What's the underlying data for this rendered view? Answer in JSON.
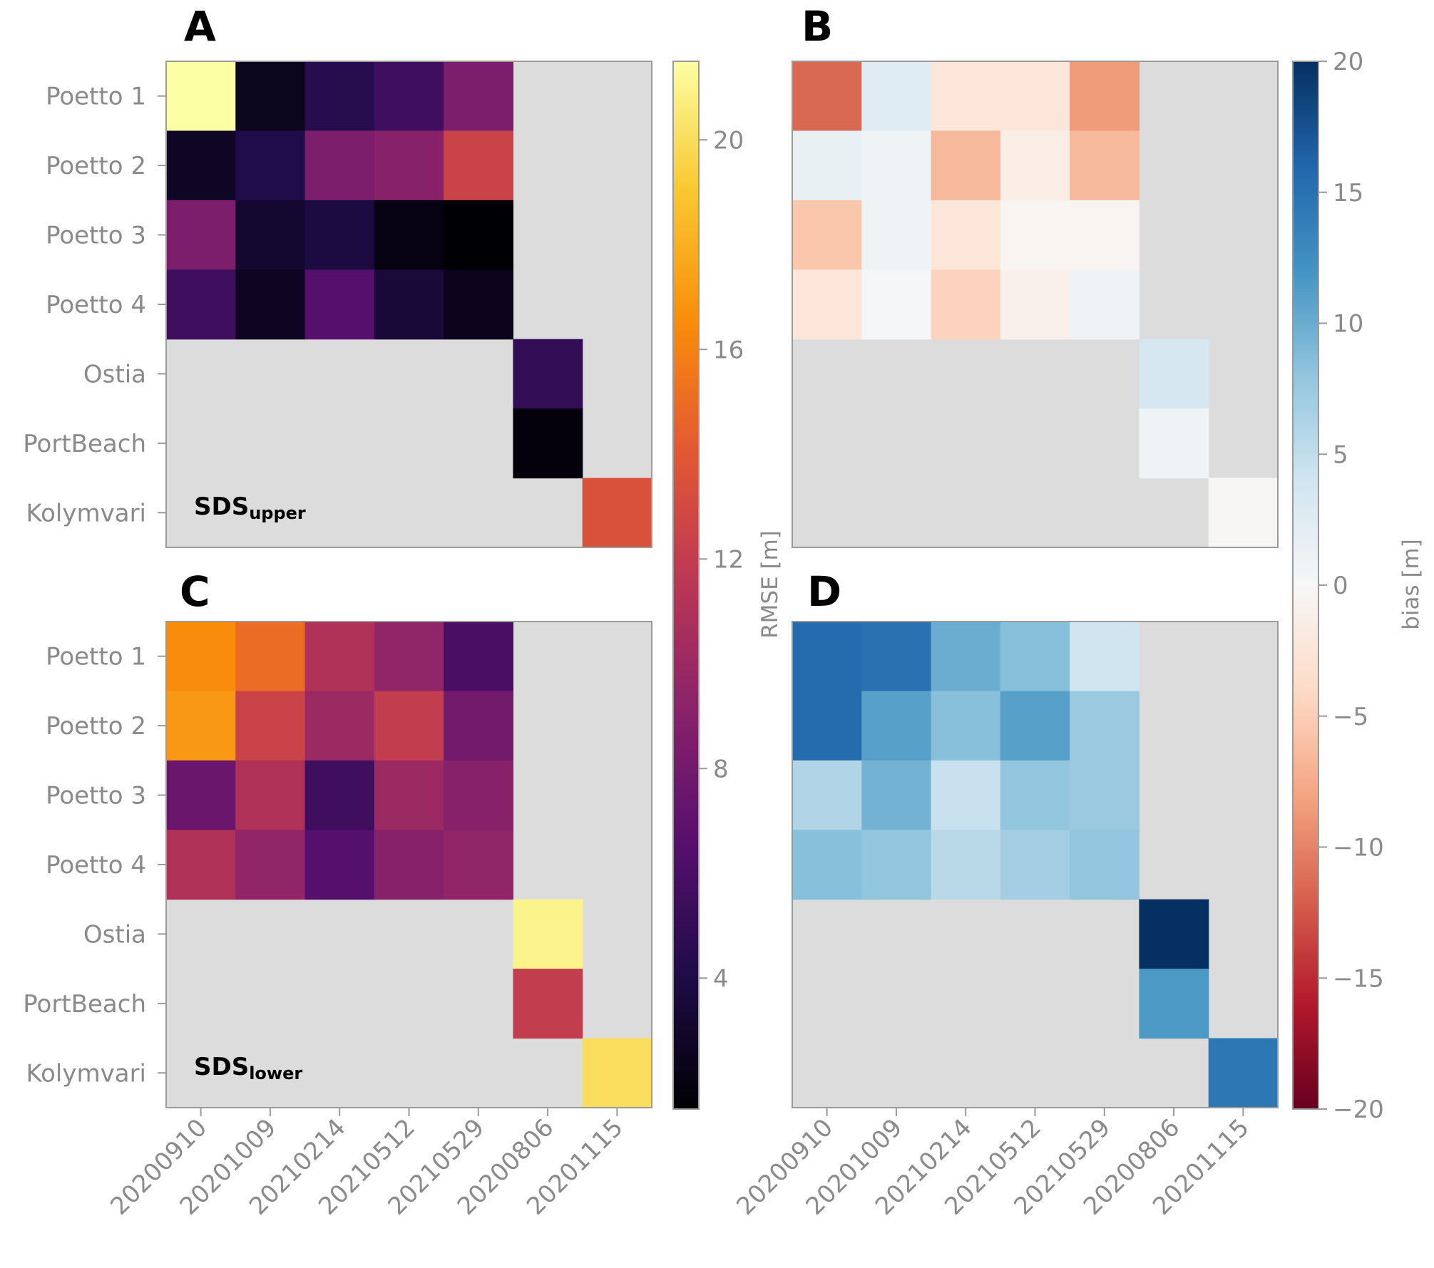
{
  "chart_data": [
    {
      "type": "heatmap",
      "panel": "A",
      "rows": [
        "Poetto 1",
        "Poetto 2",
        "Poetto 3",
        "Poetto 4",
        "Ostia",
        "PortBeach",
        "Kolymvari"
      ],
      "columns": [
        "20200910",
        "20201009",
        "20210214",
        "20210512",
        "20210529",
        "20200806",
        "20201115"
      ],
      "values": [
        [
          21.5,
          2.5,
          4.5,
          5.5,
          8.5,
          null,
          null
        ],
        [
          2.8,
          4.2,
          8.5,
          9.0,
          12.5,
          null,
          null
        ],
        [
          8.5,
          3.2,
          3.8,
          2.0,
          1.5,
          null,
          null
        ],
        [
          5.5,
          2.6,
          6.5,
          3.5,
          2.4,
          null,
          null
        ],
        [
          null,
          null,
          null,
          null,
          null,
          5.0,
          null
        ],
        [
          null,
          null,
          null,
          null,
          null,
          1.8,
          null
        ],
        [
          null,
          null,
          null,
          null,
          null,
          null,
          13.5
        ]
      ],
      "annotation": {
        "main": "SDS",
        "sub": "upper"
      },
      "colormap": "inferno",
      "vlim": [
        1.5,
        21.5
      ]
    },
    {
      "type": "heatmap",
      "panel": "B",
      "rows": [
        "Poetto 1",
        "Poetto 2",
        "Poetto 3",
        "Poetto 4",
        "Ostia",
        "PortBeach",
        "Kolymvari"
      ],
      "columns": [
        "20200910",
        "20201009",
        "20210214",
        "20210512",
        "20210529",
        "20200806",
        "20201115"
      ],
      "values": [
        [
          -11.5,
          2.5,
          -2.5,
          -2.5,
          -8.5,
          null,
          null
        ],
        [
          1.5,
          1.0,
          -6.5,
          -1.5,
          -6.5,
          null,
          null
        ],
        [
          -5.5,
          1.0,
          -2.5,
          -0.5,
          -0.5,
          null,
          null
        ],
        [
          -2.5,
          0.2,
          -4.5,
          -1.0,
          0.8,
          null,
          null
        ],
        [
          null,
          null,
          null,
          null,
          null,
          3.5,
          null
        ],
        [
          null,
          null,
          null,
          null,
          null,
          1.0,
          null
        ],
        [
          null,
          null,
          null,
          null,
          null,
          null,
          -0.2
        ]
      ],
      "colormap": "RdBu",
      "vlim": [
        -20,
        20
      ]
    },
    {
      "type": "heatmap",
      "panel": "C",
      "rows": [
        "Poetto 1",
        "Poetto 2",
        "Poetto 3",
        "Poetto 4",
        "Ostia",
        "PortBeach",
        "Kolymvari"
      ],
      "columns": [
        "20200910",
        "20201009",
        "20210214",
        "20210512",
        "20210529",
        "20200806",
        "20201115"
      ],
      "values": [
        [
          16.5,
          15.0,
          11.0,
          9.5,
          6.0,
          null,
          null
        ],
        [
          17.0,
          12.5,
          10.0,
          12.0,
          8.0,
          null,
          null
        ],
        [
          7.5,
          11.0,
          5.5,
          10.0,
          9.0,
          null,
          null
        ],
        [
          11.0,
          9.5,
          6.5,
          9.0,
          9.5,
          null,
          null
        ],
        [
          null,
          null,
          null,
          null,
          null,
          21.0,
          null
        ],
        [
          null,
          null,
          null,
          null,
          null,
          12.0,
          null
        ],
        [
          null,
          null,
          null,
          null,
          null,
          null,
          20.0
        ]
      ],
      "annotation": {
        "main": "SDS",
        "sub": "lower"
      },
      "colormap": "inferno",
      "vlim": [
        1.5,
        21.5
      ]
    },
    {
      "type": "heatmap",
      "panel": "D",
      "rows": [
        "Poetto 1",
        "Poetto 2",
        "Poetto 3",
        "Poetto 4",
        "Ostia",
        "PortBeach",
        "Kolymvari"
      ],
      "columns": [
        "20200910",
        "20201009",
        "20210214",
        "20210512",
        "20210529",
        "20200806",
        "20201115"
      ],
      "values": [
        [
          15.5,
          15.0,
          10.0,
          8.5,
          4.0,
          null,
          null
        ],
        [
          15.5,
          11.0,
          8.5,
          11.0,
          7.5,
          null,
          null
        ],
        [
          6.0,
          9.5,
          4.5,
          8.0,
          7.5,
          null,
          null
        ],
        [
          8.5,
          8.0,
          5.5,
          7.0,
          8.0,
          null,
          null
        ],
        [
          null,
          null,
          null,
          null,
          null,
          20.0,
          null
        ],
        [
          null,
          null,
          null,
          null,
          null,
          11.5,
          null
        ],
        [
          null,
          null,
          null,
          null,
          null,
          null,
          14.5
        ]
      ],
      "colormap": "RdBu",
      "vlim": [
        -20,
        20
      ]
    }
  ],
  "colorbars": [
    {
      "label": "RMSE [m]",
      "ticks": [
        "4",
        "8",
        "12",
        "16",
        "20"
      ],
      "tick_values": [
        4,
        8,
        12,
        16,
        20
      ],
      "range": [
        1.5,
        21.5
      ]
    },
    {
      "label": "bias [m]",
      "ticks": [
        "20",
        "15",
        "10",
        "5",
        "0",
        "−5",
        "−10",
        "−15",
        "−20"
      ],
      "tick_values": [
        20,
        15,
        10,
        5,
        0,
        -5,
        -10,
        -15,
        -20
      ],
      "range": [
        -20,
        20
      ]
    }
  ],
  "colors": {
    "missing": "#dcdcdc",
    "frame": "#9a9a9a",
    "tick_text": "#8a8a8a"
  }
}
